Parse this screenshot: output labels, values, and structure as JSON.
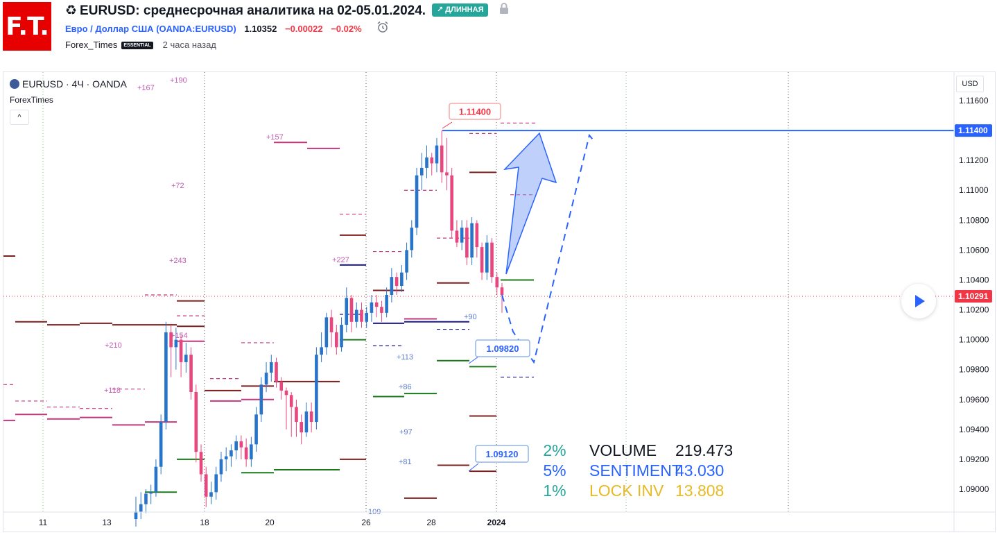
{
  "header": {
    "logo_text": "F.T.",
    "recycle_icon": "♻",
    "title": "EURUSD: среднесрочная аналитика на 02-05.01.2024.",
    "badge": "↗ ДЛИННАЯ",
    "lock_icon": "lock-icon",
    "symbol_name": "Евро / Доллар США",
    "symbol_ticker": "(OANDA:EURUSD)",
    "price": "1.10352",
    "change": "−0.00022",
    "change_pct": "−0.02%",
    "author": "Forex_Times",
    "author_tag": "ESSENTIAL",
    "published": "2 часа назад"
  },
  "chart_header": {
    "symbol": "EURUSD · 4Ч · OANDA",
    "indicator": "ForexTimes",
    "collapse_icon": "^",
    "currency": "USD"
  },
  "chart_data": {
    "type": "candlestick",
    "ylim": [
      1.088,
      1.1175
    ],
    "y_ticks": [
      "1.11600",
      "1.11200",
      "1.11000",
      "1.10800",
      "1.10600",
      "1.10400",
      "1.10200",
      "1.10000",
      "1.09800",
      "1.09600",
      "1.09400",
      "1.09200",
      "1.09000"
    ],
    "x_ticks": [
      "11",
      "13",
      "18",
      "20",
      "26",
      "28",
      "2024"
    ],
    "colors": {
      "up": "#2874c9",
      "down": "#e8467f",
      "level_red": "#7b1f1f",
      "level_green": "#1a7a1a",
      "level_magenta": "#c2377d",
      "level_navy": "#1c1a8a",
      "line_blue": "#2962ff"
    },
    "current_price": "1.10291",
    "horizontal_line": "1.11400",
    "price_labels": [
      {
        "text": "1.11400",
        "color": "red"
      },
      {
        "text": "1.09820",
        "color": "blue"
      },
      {
        "text": "1.09120",
        "color": "blue"
      }
    ],
    "level_labels": [
      {
        "text": "+167",
        "color": "pink"
      },
      {
        "text": "+190",
        "color": "pink"
      },
      {
        "text": "+157",
        "color": "pink"
      },
      {
        "text": "+72",
        "color": "pink"
      },
      {
        "text": "+243",
        "color": "pink"
      },
      {
        "text": "+227",
        "color": "pink"
      },
      {
        "text": "+210",
        "color": "pink"
      },
      {
        "text": "+154",
        "color": "pink"
      },
      {
        "text": "+118",
        "color": "pink"
      },
      {
        "text": "+90",
        "color": "blue"
      },
      {
        "text": "+113",
        "color": "blue"
      },
      {
        "text": "+86",
        "color": "blue"
      },
      {
        "text": "+97",
        "color": "blue"
      },
      {
        "text": "+81",
        "color": "blue"
      },
      {
        "text": "109",
        "color": "blue"
      }
    ],
    "candles": [
      [
        1.088,
        1.0885,
        1.0875,
        1.0895
      ],
      [
        1.0885,
        1.089,
        1.088,
        1.0898
      ],
      [
        1.089,
        1.0897,
        1.0884,
        1.09
      ],
      [
        1.0897,
        1.0898,
        1.089,
        1.0903
      ],
      [
        1.0898,
        1.0915,
        1.0895,
        1.092
      ],
      [
        1.0915,
        1.0945,
        1.091,
        1.095
      ],
      [
        1.0945,
        1.1005,
        1.094,
        1.1012
      ],
      [
        1.1005,
        1.0995,
        1.0975,
        1.101
      ],
      [
        1.0995,
        1.1,
        1.098,
        1.1008
      ],
      [
        1.1,
        1.0985,
        1.0975,
        1.1003
      ],
      [
        1.0985,
        1.099,
        1.0978,
        1.0998
      ],
      [
        1.099,
        1.0965,
        1.096,
        1.0995
      ],
      [
        1.0965,
        1.0925,
        1.0918,
        1.097
      ],
      [
        1.0925,
        1.091,
        1.0905,
        1.093
      ],
      [
        1.091,
        1.0895,
        1.0888,
        1.0915
      ],
      [
        1.0895,
        1.0898,
        1.089,
        1.0905
      ],
      [
        1.0898,
        1.091,
        1.0893,
        1.0915
      ],
      [
        1.091,
        1.092,
        1.0905,
        1.0925
      ],
      [
        1.092,
        1.0922,
        1.0912,
        1.0928
      ],
      [
        1.0922,
        1.0926,
        1.0915,
        1.093
      ],
      [
        1.0926,
        1.0932,
        1.092,
        1.0936
      ],
      [
        1.0932,
        1.0928,
        1.092,
        1.0936
      ],
      [
        1.0928,
        1.092,
        1.0915,
        1.0934
      ],
      [
        1.092,
        1.093,
        1.0915,
        1.0935
      ],
      [
        1.093,
        1.095,
        1.0925,
        1.0955
      ],
      [
        1.095,
        1.097,
        1.0945,
        1.0975
      ],
      [
        1.097,
        1.0978,
        1.0965,
        1.0985
      ],
      [
        1.0978,
        1.0985,
        1.0972,
        1.099
      ],
      [
        1.0985,
        1.0972,
        1.0968,
        1.0988
      ],
      [
        1.0972,
        1.0966,
        1.096,
        1.0975
      ],
      [
        1.0966,
        1.0963,
        1.094,
        1.0968
      ],
      [
        1.0963,
        1.0955,
        1.0935,
        1.0965
      ],
      [
        1.0955,
        1.0945,
        1.0935,
        1.096
      ],
      [
        1.0945,
        1.0938,
        1.093,
        1.095
      ],
      [
        1.0938,
        1.0952,
        1.0935,
        1.0958
      ],
      [
        1.0952,
        1.0945,
        1.0938,
        1.0958
      ],
      [
        1.0945,
        1.099,
        1.094,
        1.0995
      ],
      [
        1.099,
        1.0995,
        1.0985,
        1.1005
      ],
      [
        1.0995,
        1.1015,
        1.099,
        1.1018
      ],
      [
        1.1015,
        1.1005,
        1.0995,
        1.102
      ],
      [
        1.1005,
        1.0995,
        1.099,
        1.101
      ],
      [
        1.0995,
        1.101,
        1.0992,
        1.1015
      ],
      [
        1.101,
        1.1028,
        1.1005,
        1.1035
      ],
      [
        1.1028,
        1.1012,
        1.1005,
        1.103
      ],
      [
        1.1012,
        1.102,
        1.1008,
        1.1025
      ],
      [
        1.102,
        1.1012,
        1.1008,
        1.1025
      ],
      [
        1.1012,
        1.1018,
        1.1008,
        1.1022
      ],
      [
        1.1018,
        1.1025,
        1.1012,
        1.103
      ],
      [
        1.1025,
        1.1022,
        1.1015,
        1.103
      ],
      [
        1.1022,
        1.1018,
        1.1012,
        1.1026
      ],
      [
        1.1018,
        1.103,
        1.1015,
        1.1035
      ],
      [
        1.103,
        1.1042,
        1.1025,
        1.1048
      ],
      [
        1.1042,
        1.1036,
        1.103,
        1.1045
      ],
      [
        1.1036,
        1.1045,
        1.1032,
        1.105
      ],
      [
        1.1045,
        1.106,
        1.104,
        1.1065
      ],
      [
        1.106,
        1.1075,
        1.1055,
        1.108
      ],
      [
        1.1075,
        1.111,
        1.107,
        1.1115
      ],
      [
        1.111,
        1.1115,
        1.11,
        1.1125
      ],
      [
        1.1115,
        1.1122,
        1.1108,
        1.113
      ],
      [
        1.1122,
        1.1118,
        1.111,
        1.1125
      ],
      [
        1.1118,
        1.113,
        1.1112,
        1.1135
      ],
      [
        1.113,
        1.1112,
        1.1105,
        1.114
      ],
      [
        1.1112,
        1.111,
        1.11,
        1.1135
      ],
      [
        1.111,
        1.1073,
        1.1068,
        1.1115
      ],
      [
        1.1073,
        1.1065,
        1.1062,
        1.108
      ],
      [
        1.1065,
        1.1075,
        1.106,
        1.108
      ],
      [
        1.1075,
        1.1055,
        1.105,
        1.108
      ],
      [
        1.1055,
        1.1078,
        1.105,
        1.1082
      ],
      [
        1.1078,
        1.1062,
        1.1055,
        1.108
      ],
      [
        1.1062,
        1.1045,
        1.104,
        1.1065
      ],
      [
        1.1045,
        1.1065,
        1.104,
        1.107
      ],
      [
        1.1065,
        1.1042,
        1.1038,
        1.1068
      ],
      [
        1.1042,
        1.1035,
        1.103,
        1.1045
      ],
      [
        1.1035,
        1.103,
        1.1018,
        1.1038
      ]
    ]
  },
  "stats": [
    {
      "pct": "2%",
      "label": "VOLUME",
      "value": "219.473",
      "pct_color": "#26a69a",
      "color": "#131722"
    },
    {
      "pct": "5%",
      "label": "SENTIMENT",
      "value": "43.030",
      "pct_color": "#2962ff",
      "color": "#2962ff"
    },
    {
      "pct": "1%",
      "label": "LOCK INV",
      "value": "13.808",
      "pct_color": "#26a69a",
      "color": "#e8b923"
    }
  ]
}
